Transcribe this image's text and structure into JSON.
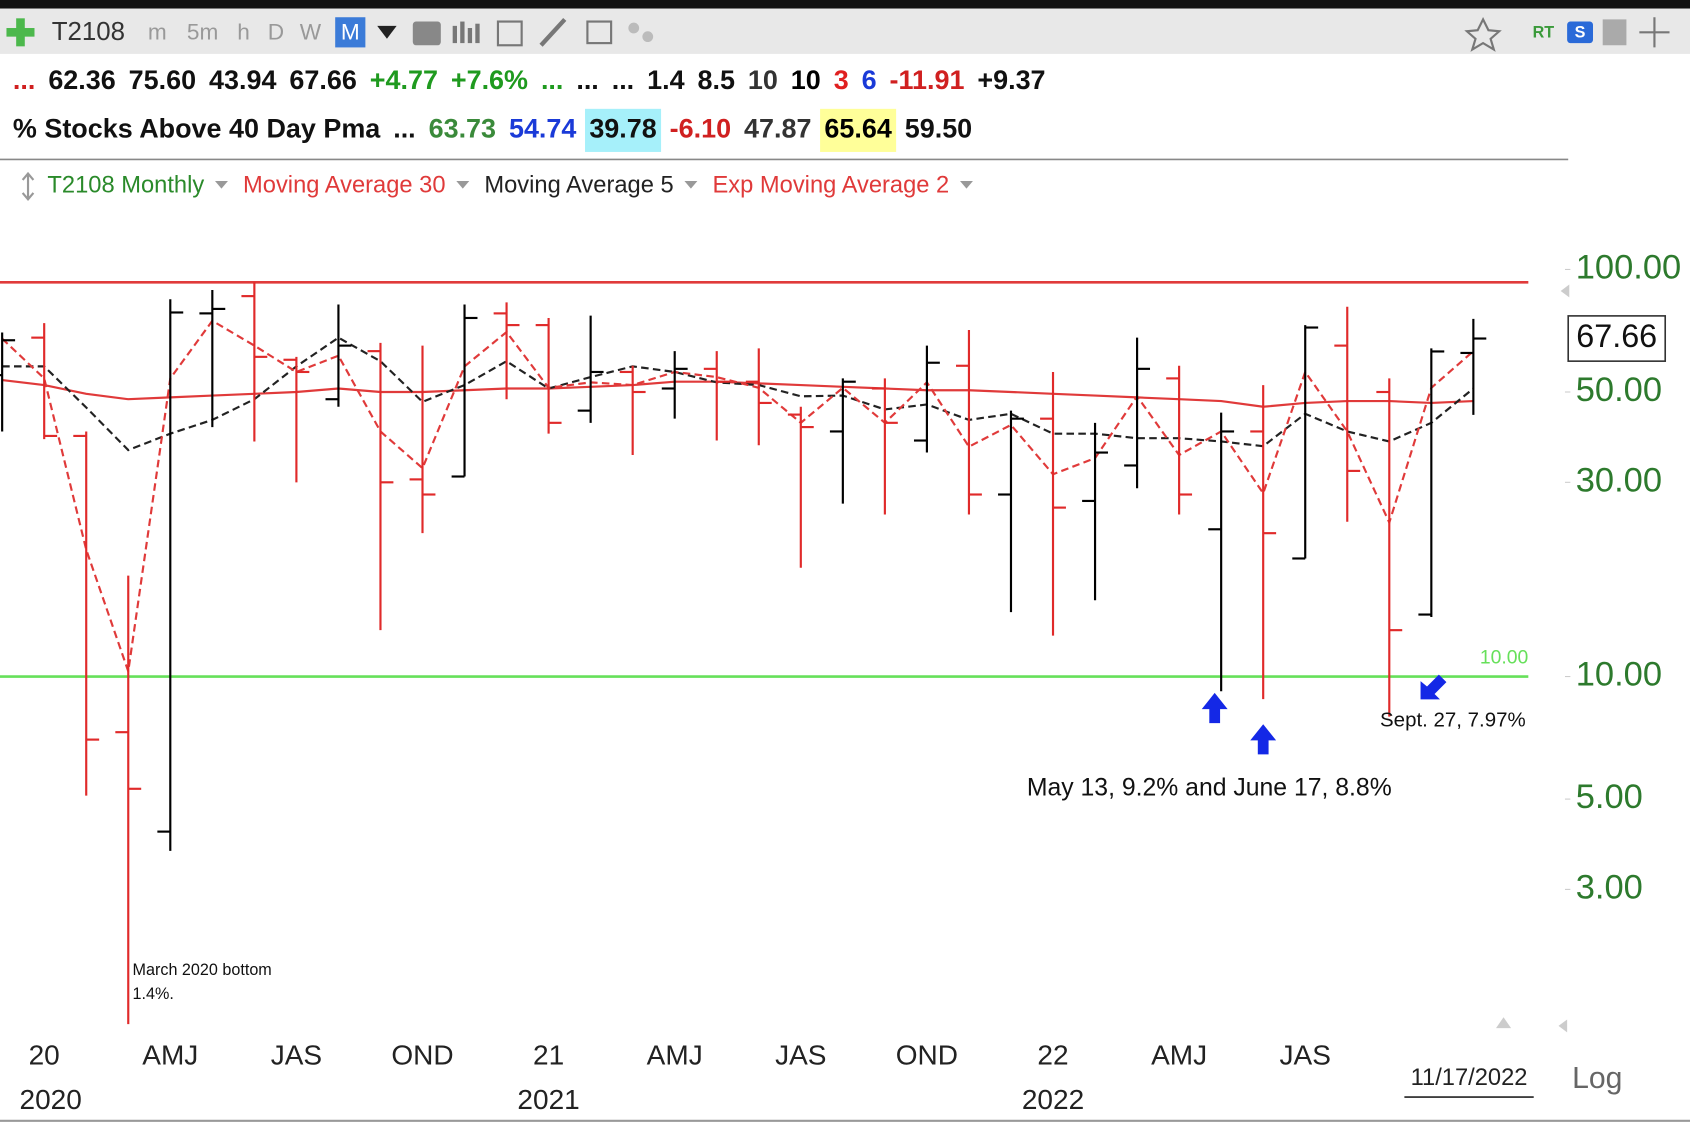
{
  "toolbar": {
    "symbol": "T2108",
    "intervals": [
      "m",
      "5m",
      "h",
      "D",
      "W",
      "M"
    ],
    "selected": "M",
    "badges": [
      "RT",
      "S"
    ]
  },
  "quote": {
    "row1": [
      {
        "text": "...",
        "color": "#d02020"
      },
      {
        "text": "62.36",
        "color": "#111"
      },
      {
        "text": "75.60",
        "color": "#111"
      },
      {
        "text": "43.94",
        "color": "#111"
      },
      {
        "text": "67.66",
        "color": "#111"
      },
      {
        "text": "+4.77",
        "color": "#1f9a1f"
      },
      {
        "text": "+7.6%",
        "color": "#1f9a1f"
      },
      {
        "text": "...",
        "color": "#1f9a1f"
      },
      {
        "text": "...",
        "color": "#111"
      },
      {
        "text": "...",
        "color": "#111"
      },
      {
        "text": "1.4",
        "color": "#111"
      },
      {
        "text": "8.5",
        "color": "#111"
      },
      {
        "text": "10",
        "color": "#333"
      },
      {
        "text": "10",
        "color": "#000"
      },
      {
        "text": "3",
        "color": "#e02020"
      },
      {
        "text": "6",
        "color": "#1a3ad8"
      },
      {
        "text": "-11.91",
        "color": "#d02020"
      },
      {
        "text": "+9.37",
        "color": "#111"
      }
    ],
    "row2": [
      {
        "text": "% Stocks Above 40 Day Pma",
        "color": "#111"
      },
      {
        "text": "...",
        "color": "#111"
      },
      {
        "text": "63.73",
        "color": "#3a8a3a"
      },
      {
        "text": "54.74",
        "color": "#1a3ad8"
      },
      {
        "text": "39.78",
        "color": "#111",
        "bg": "#a6f0fa"
      },
      {
        "text": "-6.10",
        "color": "#d02020"
      },
      {
        "text": "47.87",
        "color": "#333"
      },
      {
        "text": "65.64",
        "color": "#000",
        "bg": "#ffff99"
      },
      {
        "text": "59.50",
        "color": "#111"
      }
    ]
  },
  "chart_data": {
    "type": "ohlc",
    "x": [
      null,
      "20",
      null,
      null,
      "AMJ",
      null,
      null,
      "JAS",
      null,
      null,
      "OND",
      null,
      null,
      "21",
      null,
      null,
      "AMJ",
      null,
      null,
      "JAS",
      null,
      null,
      "OND",
      null,
      null,
      "22",
      null,
      null,
      "AMJ",
      null,
      null,
      "JAS",
      null,
      null,
      null,
      null
    ],
    "x_years": [
      null,
      "2020",
      null,
      null,
      null,
      null,
      null,
      null,
      null,
      null,
      null,
      null,
      null,
      "2021",
      null,
      null,
      null,
      null,
      null,
      null,
      null,
      null,
      null,
      null,
      null,
      "2022",
      null,
      null,
      null,
      null,
      null,
      null,
      null,
      null,
      null,
      null
    ],
    "log_scale": true,
    "ylim": [
      1.32,
      184
    ],
    "yticks": [
      {
        "value": 100,
        "label": "100.00"
      },
      {
        "value": 50,
        "label": "50.00"
      },
      {
        "value": 30,
        "label": "30.00"
      },
      {
        "value": 10,
        "label": "10.00"
      },
      {
        "value": 5,
        "label": "5.00"
      },
      {
        "value": 3,
        "label": "3.00"
      }
    ],
    "series": [
      {
        "name": "T2108 Monthly",
        "color": "#2a8a2a",
        "up_color": "#000000",
        "down_color": "#e02a2a",
        "open": [
          55,
          68,
          39,
          7.3,
          4.16,
          78,
          86,
          60,
          48,
          63,
          30.5,
          31,
          78,
          73,
          45,
          56,
          51,
          57,
          53,
          44,
          40,
          51,
          38,
          58,
          28,
          43,
          27,
          33,
          54,
          23,
          40,
          19.5,
          65,
          50,
          14.2,
          62.36
        ],
        "high": [
          70,
          73.8,
          40,
          17.7,
          84.5,
          89,
          93,
          61,
          82,
          66,
          65,
          82,
          83,
          76,
          77,
          58,
          63,
          63,
          64,
          46,
          54,
          54,
          65,
          71,
          45,
          56,
          42,
          68,
          58,
          44.5,
          52,
          73,
          81,
          54,
          64,
          75.6
        ],
        "low": [
          40,
          38.3,
          5.1,
          1.4,
          3.73,
          41,
          37.8,
          30,
          46,
          13,
          22.5,
          31,
          48,
          39.5,
          42,
          35,
          43,
          38,
          37,
          18.5,
          26.6,
          25,
          35.5,
          25,
          14.4,
          12.6,
          15.4,
          29,
          25,
          9.2,
          8.8,
          19.5,
          24,
          7.97,
          14,
          43.94
        ],
        "close": [
          67,
          39,
          7,
          5.3,
          78.4,
          80,
          61,
          56,
          65,
          30,
          28,
          76,
          73,
          42,
          56,
          50,
          57,
          53,
          47,
          41,
          53,
          42,
          59,
          28,
          43,
          26,
          35.5,
          57,
          28,
          40,
          22.5,
          72,
          32,
          13,
          62.89,
          67.66
        ]
      },
      {
        "name": "Moving Average 30",
        "color": "#e03a3a",
        "dashed": false,
        "values": [
          53.5,
          52,
          49.5,
          48,
          48.5,
          49,
          49.5,
          50,
          51,
          50,
          50,
          50.5,
          51,
          51,
          51.5,
          52,
          53,
          53,
          52.5,
          52,
          51.5,
          51,
          50.5,
          50.5,
          50,
          49.5,
          49,
          48.5,
          48,
          47.5,
          46,
          47,
          47.5,
          47.5,
          47,
          47.5
        ]
      },
      {
        "name": "Moving Average 5",
        "color": "#222222",
        "dashed": true,
        "values": [
          57.8,
          57.8,
          45.8,
          36,
          39.5,
          42.7,
          48,
          57.8,
          68,
          59.5,
          47.3,
          52,
          59.5,
          51,
          54.4,
          57.8,
          56,
          52.8,
          52,
          48.8,
          49,
          45.3,
          46.6,
          42.7,
          44.2,
          39.5,
          39.5,
          38.5,
          38.5,
          37.8,
          36.8,
          44.2,
          40,
          37.8,
          42,
          51
        ]
      },
      {
        "name": "Exp Moving Average 2",
        "color": "#e03a3a",
        "dashed": true,
        "values": [
          67.6,
          54,
          20.5,
          10.3,
          54,
          74.8,
          65,
          56,
          61.4,
          40,
          32.5,
          57.8,
          70.2,
          51.2,
          52.8,
          52,
          56,
          54.4,
          51.2,
          42,
          51.2,
          42,
          52.8,
          36.7,
          41.5,
          31.4,
          34.4,
          48.8,
          35,
          40,
          28.2,
          56,
          40,
          23.9,
          51.2,
          63
        ]
      }
    ],
    "reference_lines": [
      {
        "value": 93,
        "color": "#e03a3a"
      },
      {
        "value": 10,
        "color": "#66e05a",
        "label": "10.00"
      }
    ],
    "annotations": [
      {
        "lines": [
          "March 2020 bottom",
          "1.4%."
        ]
      },
      {
        "lines": [
          "May 13, 9.2%  and June 17, 8.8%"
        ]
      },
      {
        "lines": [
          "Sept. 27,  7.97%"
        ]
      }
    ],
    "date": "11/17/2022",
    "scale_label": "Log"
  }
}
